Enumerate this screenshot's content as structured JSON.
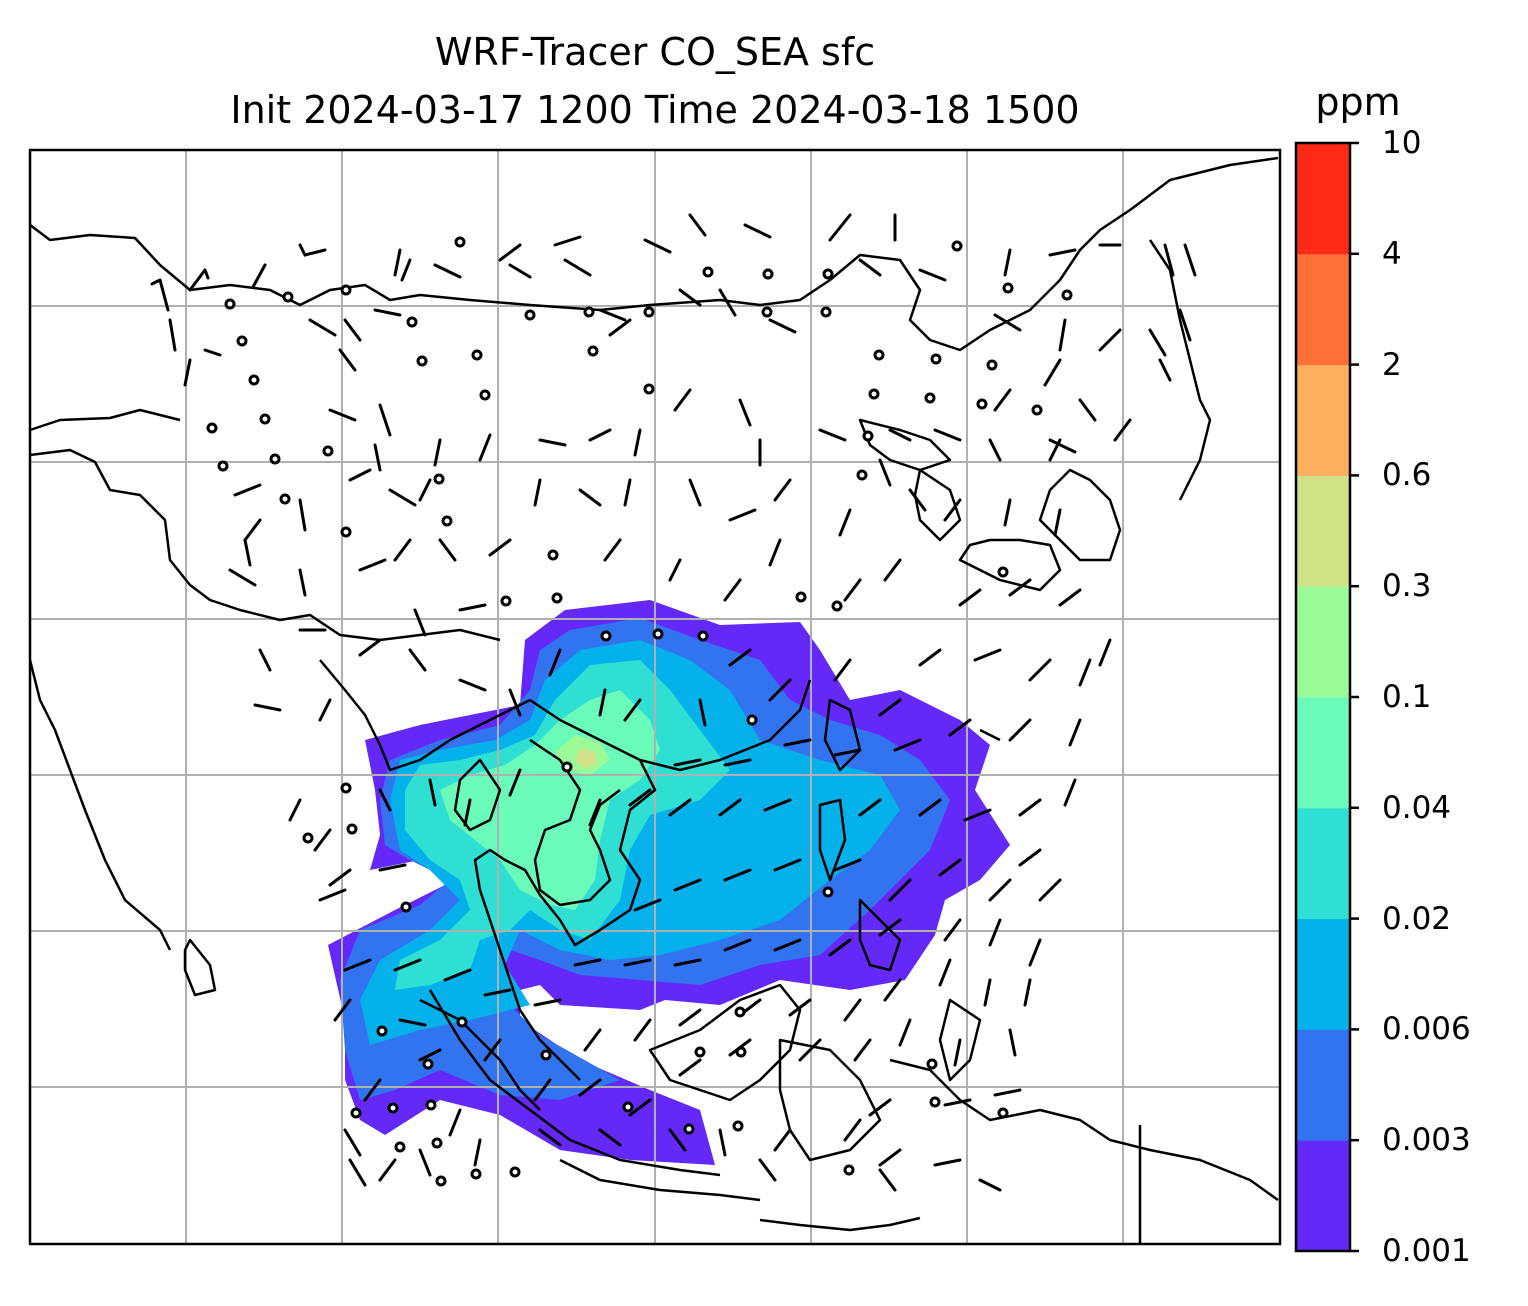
{
  "title": {
    "line1": "WRF-Tracer CO_SEA sfc",
    "line2": "Init 2024-03-17 1200 Time 2024-03-18 1500"
  },
  "colorbar": {
    "unit": "ppm",
    "levels": [
      "0.001",
      "0.003",
      "0.006",
      "0.02",
      "0.04",
      "0.1",
      "0.3",
      "0.6",
      "2",
      "4",
      "10"
    ],
    "colors": [
      "#6429f8",
      "#3273f0",
      "#05b1ea",
      "#30dfd3",
      "#6afbbb",
      "#9cfb99",
      "#d0e187",
      "#fdaf60",
      "#fe7038",
      "#ff2a15"
    ]
  }
}
